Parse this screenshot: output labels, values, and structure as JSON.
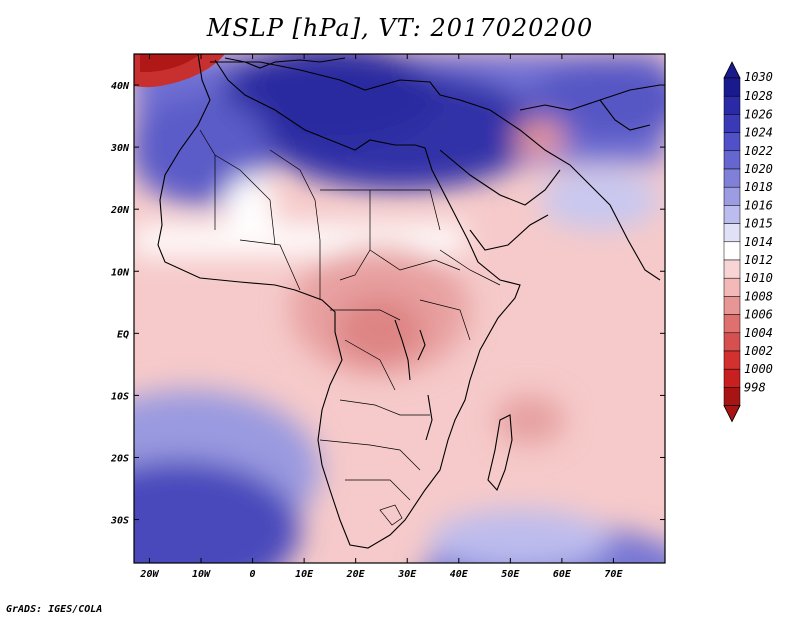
{
  "title": "MSLP [hPa], VT: 2017020200",
  "credit": "GrADS: IGES/COLA",
  "map": {
    "lon_range": [
      -23,
      80
    ],
    "lat_range": [
      -37,
      45
    ],
    "projection": "latlon"
  },
  "axes": {
    "x_ticks": [
      "20W",
      "10W",
      "0",
      "10E",
      "20E",
      "30E",
      "40E",
      "50E",
      "60E",
      "70E"
    ],
    "x_values": [
      -20,
      -10,
      0,
      10,
      20,
      30,
      40,
      50,
      60,
      70
    ],
    "y_ticks": [
      "40N",
      "30N",
      "20N",
      "10N",
      "EQ",
      "10S",
      "20S",
      "30S"
    ],
    "y_values": [
      40,
      30,
      20,
      10,
      0,
      -10,
      -20,
      -30
    ]
  },
  "colorbar": {
    "labels": [
      "1030",
      "1028",
      "1026",
      "1024",
      "1022",
      "1020",
      "1018",
      "1016",
      "1015",
      "1014",
      "1012",
      "1010",
      "1008",
      "1006",
      "1004",
      "1002",
      "1000",
      "998"
    ],
    "colors": [
      "#1a1a8f",
      "#2a2aa6",
      "#3a3ab8",
      "#5050c8",
      "#6666d0",
      "#8080d8",
      "#9c9ce2",
      "#bcbcee",
      "#e0e0f7",
      "#ffffff",
      "#f7d5d5",
      "#f3b8b8",
      "#e89595",
      "#de7070",
      "#d75050",
      "#d33030",
      "#c82020",
      "#a81414"
    ]
  }
}
